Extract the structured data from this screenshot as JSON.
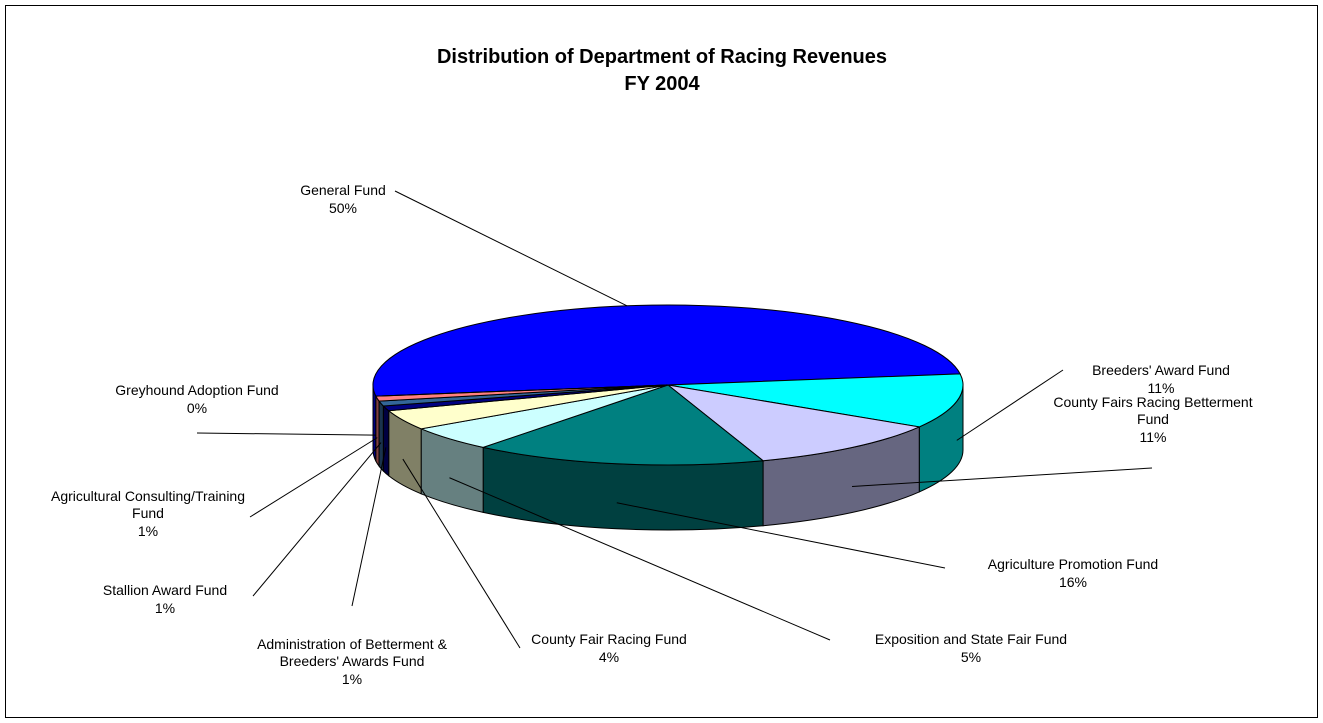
{
  "chart_data": {
    "type": "pie3d",
    "title": "Distribution of Department of Racing Revenues",
    "subtitle": "FY 2004",
    "categories": [
      "General Fund",
      "Breeders' Award Fund",
      "County Fairs Racing Betterment Fund",
      "Agriculture Promotion Fund",
      "Exposition and State Fair Fund",
      "County Fair Racing Fund",
      "Administration of Betterment & Breeders' Awards Fund",
      "Stallion Award Fund",
      "Agricultural Consulting/Training Fund",
      "Greyhound Adoption Fund"
    ],
    "values": [
      50,
      11,
      11,
      16,
      5,
      4,
      1,
      1,
      1,
      0
    ],
    "value_labels": [
      "50%",
      "11%",
      "11%",
      "16%",
      "5%",
      "4%",
      "1%",
      "1%",
      "1%",
      "0%"
    ],
    "colors": [
      "#0000ff",
      "#00ffff",
      "#ccccff",
      "#008080",
      "#ccffff",
      "#ffffcc",
      "#000080",
      "#336699",
      "#ff8080",
      "#800080"
    ]
  }
}
